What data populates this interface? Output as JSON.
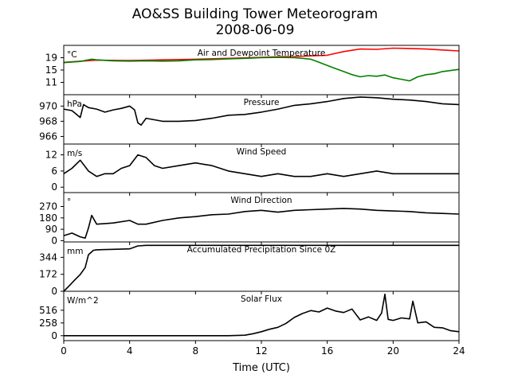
{
  "title": "AO&SS Building Tower Meteorogram",
  "subtitle": "2008-06-09",
  "xlabel": "Time (UTC)",
  "xticks": [
    "0",
    "4",
    "8",
    "12",
    "16",
    "20",
    "24"
  ],
  "chart_data": [
    {
      "type": "line",
      "title": "Air and Dewpoint Temperature",
      "unit": "°C",
      "ylim": [
        7,
        23
      ],
      "yticks": [
        11,
        15,
        19
      ],
      "xlim": [
        0,
        24
      ],
      "series": [
        {
          "color": "#ff0000",
          "x": [
            0,
            2,
            4,
            6,
            8,
            10,
            12,
            13,
            14,
            15,
            16,
            17,
            18,
            19,
            20,
            21,
            22,
            23,
            24
          ],
          "y": [
            17.5,
            18.2,
            18.1,
            18.3,
            18.5,
            18.8,
            19.1,
            19.3,
            19.4,
            19.6,
            19.8,
            21.0,
            21.8,
            21.7,
            22.1,
            22.0,
            21.8,
            21.5,
            21.2
          ]
        },
        {
          "color": "#008000",
          "x": [
            0,
            1,
            1.7,
            2,
            3,
            4,
            5,
            6,
            7,
            8,
            9,
            10,
            11,
            12,
            13,
            14,
            14.5,
            15,
            15.5,
            16,
            16.5,
            17,
            17.5,
            18,
            18.5,
            19,
            19.5,
            20,
            20.5,
            21,
            21.5,
            22,
            22.5,
            23,
            24
          ],
          "y": [
            17.4,
            17.8,
            18.5,
            18.3,
            18.0,
            17.9,
            18.0,
            17.9,
            18.0,
            18.3,
            18.4,
            18.6,
            18.8,
            19.0,
            19.1,
            19.0,
            18.8,
            18.5,
            17.5,
            16.5,
            15.5,
            14.5,
            13.5,
            12.8,
            13.2,
            13.0,
            13.4,
            12.5,
            12.0,
            11.5,
            12.8,
            13.5,
            13.8,
            14.5,
            15.2
          ]
        }
      ]
    },
    {
      "type": "line",
      "title": "Pressure",
      "unit": "hPa",
      "ylim": [
        965,
        971.5
      ],
      "yticks": [
        966,
        968,
        970
      ],
      "xlim": [
        0,
        24
      ],
      "series": [
        {
          "color": "#000000",
          "x": [
            0,
            0.5,
            1,
            1.2,
            1.5,
            2,
            2.5,
            3,
            3.5,
            4,
            4.3,
            4.5,
            4.7,
            5,
            5.5,
            6,
            7,
            8,
            9,
            10,
            11,
            12,
            13,
            14,
            15,
            16,
            17,
            18,
            19,
            20,
            21,
            22,
            23,
            24
          ],
          "y": [
            969.6,
            969.4,
            968.5,
            970.2,
            969.8,
            969.6,
            969.2,
            969.5,
            969.7,
            970.0,
            969.5,
            967.8,
            967.5,
            968.4,
            968.2,
            968.0,
            968.0,
            968.1,
            968.4,
            968.8,
            968.9,
            969.2,
            969.6,
            970.1,
            970.3,
            970.6,
            971.0,
            971.2,
            971.1,
            970.9,
            970.8,
            970.6,
            970.3,
            970.2
          ]
        }
      ]
    },
    {
      "type": "line",
      "title": "Wind Speed",
      "unit": "m/s",
      "ylim": [
        -2,
        16
      ],
      "yticks": [
        0,
        6,
        12
      ],
      "xlim": [
        0,
        24
      ],
      "series": [
        {
          "color": "#000000",
          "x": [
            0,
            0.5,
            1,
            1.5,
            2,
            2.5,
            3,
            3.5,
            4,
            4.5,
            5,
            5.5,
            6,
            7,
            8,
            9,
            10,
            11,
            12,
            13,
            14,
            15,
            16,
            17,
            18,
            19,
            20,
            21,
            22,
            23,
            24
          ],
          "y": [
            5,
            7,
            10,
            6,
            4,
            5,
            5,
            7,
            8,
            12,
            11,
            8,
            7,
            8,
            9,
            8,
            6,
            5,
            4,
            5,
            4,
            4,
            5,
            4,
            5,
            6,
            5,
            5,
            5,
            5,
            5
          ]
        }
      ]
    },
    {
      "type": "line",
      "title": "Wind Direction",
      "unit": "°",
      "ylim": [
        -10,
        380
      ],
      "yticks": [
        0,
        90,
        180,
        270
      ],
      "xlim": [
        0,
        24
      ],
      "series": [
        {
          "color": "#000000",
          "x": [
            0,
            0.5,
            1,
            1.3,
            1.5,
            1.7,
            2,
            3,
            4,
            4.5,
            5,
            6,
            7,
            8,
            9,
            10,
            11,
            12,
            13,
            14,
            15,
            16,
            17,
            18,
            19,
            20,
            21,
            22,
            23,
            24
          ],
          "y": [
            40,
            60,
            30,
            20,
            100,
            200,
            130,
            140,
            160,
            130,
            130,
            160,
            180,
            190,
            205,
            210,
            230,
            240,
            225,
            240,
            245,
            250,
            255,
            250,
            240,
            235,
            230,
            220,
            215,
            210
          ]
        }
      ]
    },
    {
      "type": "line",
      "title": "Accumulated Precipitation Since 0Z",
      "unit": "mm",
      "ylim": [
        0,
        500
      ],
      "yticks": [
        0,
        172,
        344
      ],
      "xlim": [
        0,
        24
      ],
      "series": [
        {
          "color": "#000000",
          "x": [
            0,
            0.3,
            0.7,
            1,
            1.3,
            1.5,
            1.8,
            2,
            3,
            4,
            4.5,
            5,
            24
          ],
          "y": [
            0,
            50,
            120,
            170,
            240,
            370,
            415,
            420,
            425,
            430,
            460,
            465,
            465
          ]
        }
      ]
    },
    {
      "type": "line",
      "title": "Solar Flux",
      "unit": "W/m^2",
      "ylim": [
        -100,
        900
      ],
      "yticks": [
        0,
        258,
        516
      ],
      "xlim": [
        0,
        24
      ],
      "series": [
        {
          "color": "#000000",
          "x": [
            0,
            2,
            4,
            6,
            8,
            10,
            11,
            11.5,
            12,
            12.5,
            13,
            13.5,
            14,
            14.5,
            15,
            15.5,
            16,
            16.5,
            17,
            17.5,
            18,
            18.5,
            19,
            19.3,
            19.5,
            19.7,
            20,
            20.5,
            21,
            21.2,
            21.5,
            22,
            22.5,
            23,
            23.5,
            24
          ],
          "y": [
            0,
            0,
            0,
            0,
            0,
            0,
            10,
            40,
            80,
            130,
            170,
            250,
            370,
            450,
            510,
            480,
            560,
            500,
            470,
            540,
            320,
            380,
            310,
            460,
            840,
            330,
            310,
            360,
            340,
            700,
            260,
            280,
            170,
            160,
            100,
            80
          ]
        }
      ]
    }
  ]
}
